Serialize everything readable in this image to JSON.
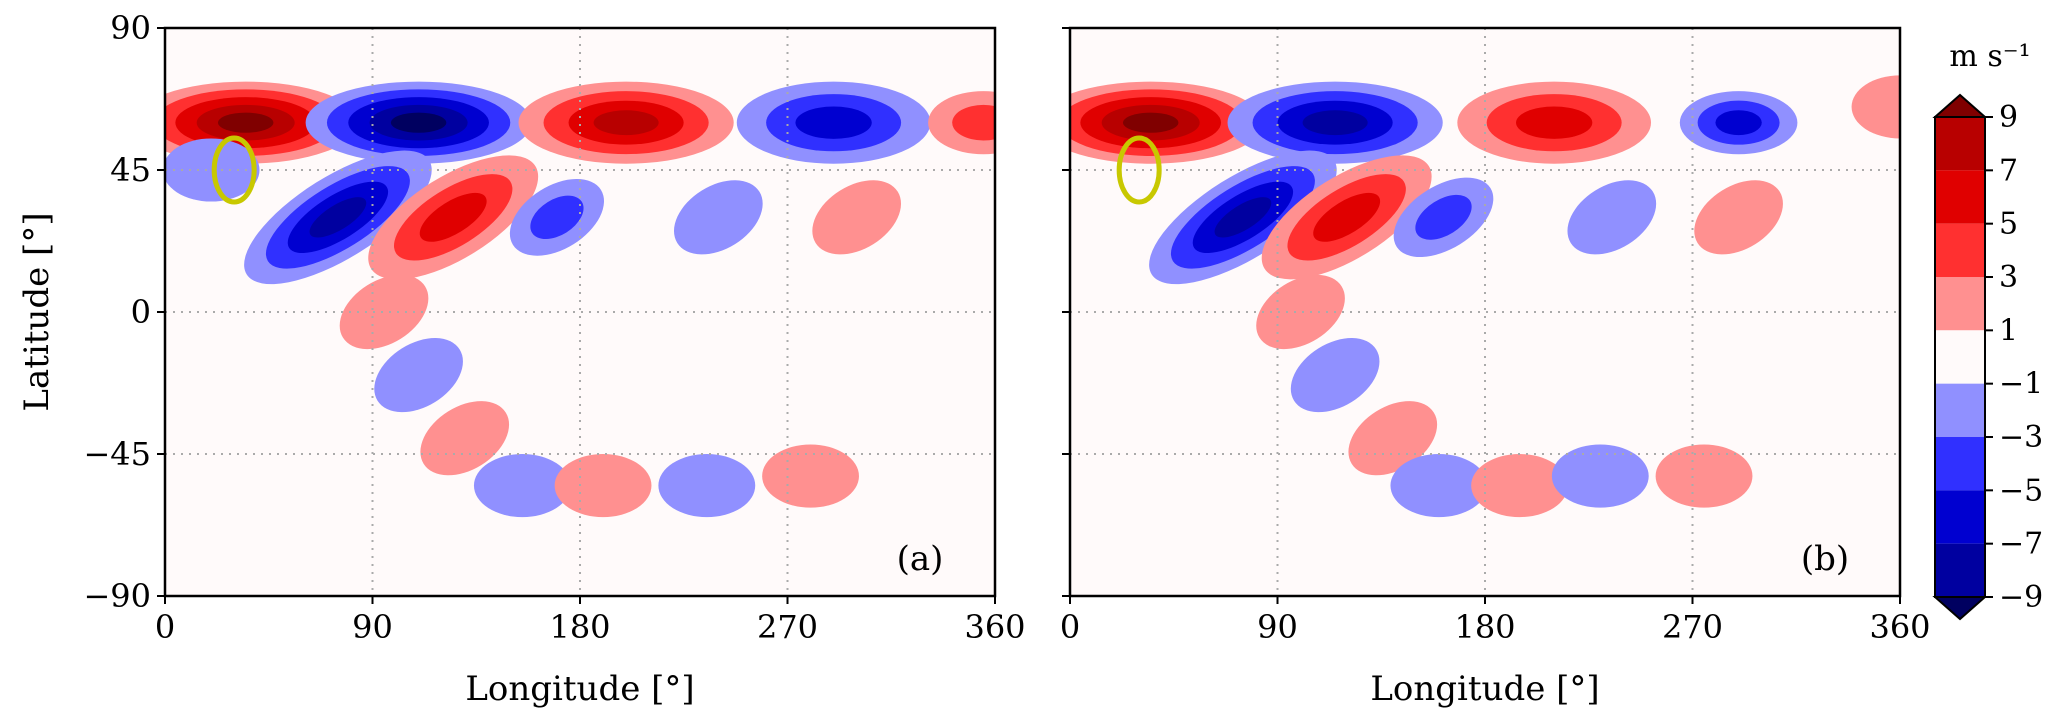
{
  "chart_data": [
    {
      "type": "contour",
      "panel_label": "(a)",
      "xlabel": "Longitude [°]",
      "ylabel": "Latitude [°]",
      "xlim": [
        0,
        360
      ],
      "ylim": [
        -90,
        90
      ],
      "x_ticks": [
        "0",
        "90",
        "180",
        "270",
        "360"
      ],
      "y_ticks": [
        "90",
        "45",
        "0",
        "−45",
        "−90"
      ],
      "grid": "dotted",
      "highlight": {
        "shape": "ellipse",
        "color": "#c8c800",
        "lon": 30,
        "lat": 45
      },
      "features": [
        {
          "lon": 35,
          "lat": 60,
          "value": 9
        },
        {
          "lon": 110,
          "lat": 60,
          "value": -9
        },
        {
          "lon": 200,
          "lat": 60,
          "value": 8
        },
        {
          "lon": 290,
          "lat": 60,
          "value": -6
        },
        {
          "lon": 355,
          "lat": 60,
          "value": 4
        },
        {
          "lon": 75,
          "lat": 30,
          "value": -8
        },
        {
          "lon": 125,
          "lat": 30,
          "value": 6
        },
        {
          "lon": 170,
          "lat": 30,
          "value": -3
        },
        {
          "lon": 240,
          "lat": 30,
          "value": -2
        },
        {
          "lon": 300,
          "lat": 30,
          "value": 2
        },
        {
          "lon": 20,
          "lat": 45,
          "value": -2
        },
        {
          "lon": 95,
          "lat": 0,
          "value": 2
        },
        {
          "lon": 110,
          "lat": -20,
          "value": -2
        },
        {
          "lon": 130,
          "lat": -40,
          "value": 2
        },
        {
          "lon": 155,
          "lat": -55,
          "value": -2
        },
        {
          "lon": 190,
          "lat": -55,
          "value": 2
        },
        {
          "lon": 235,
          "lat": -55,
          "value": -2
        },
        {
          "lon": 280,
          "lat": -52,
          "value": 2
        }
      ]
    },
    {
      "type": "contour",
      "panel_label": "(b)",
      "xlabel": "Longitude [°]",
      "xlim": [
        0,
        360
      ],
      "ylim": [
        -90,
        90
      ],
      "x_ticks": [
        "0",
        "90",
        "180",
        "270",
        "360"
      ],
      "grid": "dotted",
      "highlight": {
        "shape": "ellipse",
        "color": "#c8c800",
        "lon": 30,
        "lat": 45
      },
      "features": [
        {
          "lon": 35,
          "lat": 60,
          "value": 9
        },
        {
          "lon": 115,
          "lat": 60,
          "value": -8
        },
        {
          "lon": 210,
          "lat": 60,
          "value": 6
        },
        {
          "lon": 290,
          "lat": 60,
          "value": -5
        },
        {
          "lon": 360,
          "lat": 65,
          "value": 2
        },
        {
          "lon": 75,
          "lat": 30,
          "value": -8
        },
        {
          "lon": 120,
          "lat": 30,
          "value": 6
        },
        {
          "lon": 162,
          "lat": 30,
          "value": -4
        },
        {
          "lon": 235,
          "lat": 30,
          "value": -2
        },
        {
          "lon": 290,
          "lat": 30,
          "value": 2
        },
        {
          "lon": 100,
          "lat": 0,
          "value": 2
        },
        {
          "lon": 115,
          "lat": -20,
          "value": -2
        },
        {
          "lon": 140,
          "lat": -40,
          "value": 2
        },
        {
          "lon": 160,
          "lat": -55,
          "value": -2
        },
        {
          "lon": 195,
          "lat": -55,
          "value": 2
        },
        {
          "lon": 230,
          "lat": -52,
          "value": -2
        },
        {
          "lon": 275,
          "lat": -52,
          "value": 2
        }
      ]
    }
  ],
  "colorbar": {
    "unit": "m s⁻¹",
    "labels": [
      "9",
      "7",
      "5",
      "3",
      "1",
      "−1",
      "−3",
      "−5",
      "−7",
      "−9"
    ],
    "colors": [
      "#800000",
      "#b80000",
      "#e00000",
      "#ff3030",
      "#ff9090",
      "#fffafa",
      "#9090ff",
      "#3030ff",
      "#0000d0",
      "#0000a0",
      "#000060"
    ]
  }
}
